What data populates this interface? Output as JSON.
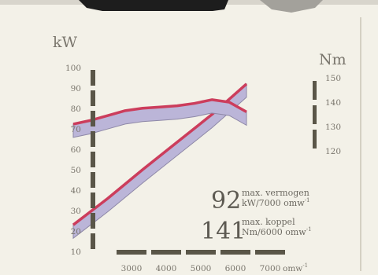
{
  "chart_data": {
    "type": "line",
    "x": [
      3000,
      4000,
      5000,
      6000,
      7000
    ],
    "xlabel": "omw",
    "xticks": [
      "3000",
      "4000",
      "5000",
      "6000",
      "7000"
    ],
    "left_axis": {
      "unit": "kW",
      "ylim": [
        10,
        100
      ],
      "ticks": [
        "10",
        "20",
        "30",
        "40",
        "50",
        "60",
        "70",
        "80",
        "90",
        "100"
      ]
    },
    "right_axis": {
      "unit": "Nm",
      "ylim": [
        120,
        150
      ],
      "ticks": [
        "120",
        "130",
        "140",
        "150"
      ]
    },
    "series": [
      {
        "axis": "left",
        "x": [
          2000,
          3000,
          4000,
          5000,
          6000,
          7000
        ],
        "values": [
          23,
          36,
          50,
          63.5,
          77,
          92
        ]
      },
      {
        "axis": "right",
        "x": [
          2000,
          2500,
          3000,
          3500,
          4000,
          4500,
          5000,
          5500,
          6000,
          6500,
          7000
        ],
        "values": [
          131,
          132.5,
          134.5,
          136.5,
          137.5,
          138,
          138.5,
          139.5,
          141,
          140,
          136
        ]
      }
    ],
    "colors": {
      "line": "#cc3d5c",
      "band": "#bbb5d8",
      "band_edge": "#8e88a7",
      "axis": "#5a5648"
    },
    "annotations": [
      {
        "value": "92",
        "text1": "max. vermogen",
        "text2": "kW/7000 omw",
        "sup": "-1"
      },
      {
        "value": "141",
        "text1": "max. koppel",
        "text2": "Nm/6000 omw",
        "sup": "-1"
      }
    ]
  }
}
